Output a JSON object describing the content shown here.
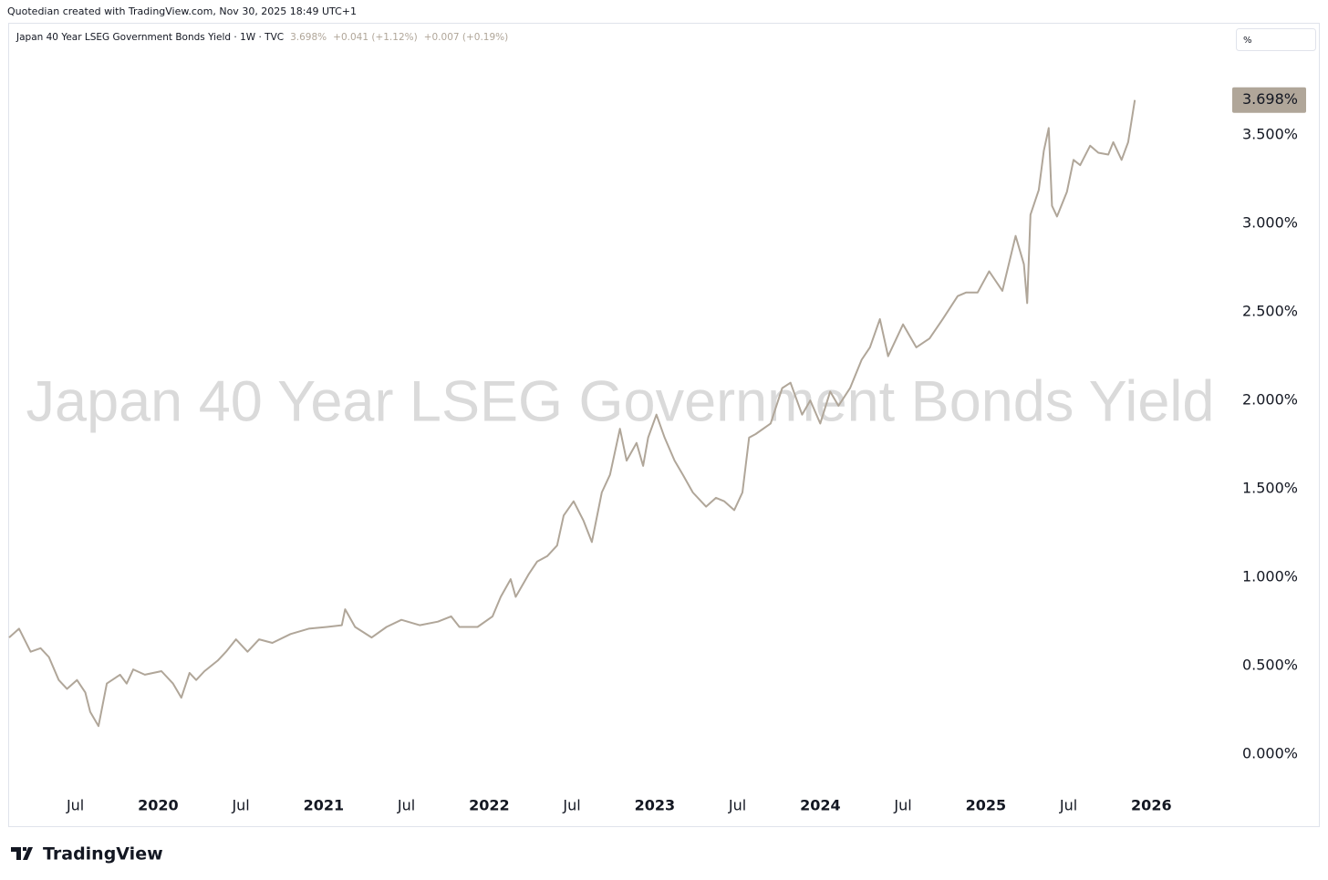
{
  "header": {
    "attribution": "Quotedian created with TradingView.com, Nov 30, 2025 18:49 UTC+1",
    "scale_button": "%"
  },
  "footer": {
    "brand": "TradingView"
  },
  "chart_data": {
    "type": "line",
    "title": "Japan 40 Year LSEG Government Bonds Yield",
    "legend_label": "Japan 40 Year LSEG Government Bonds Yield · 1W · TVC",
    "legend_stats": [
      "3.698%",
      "+0.041 (+1.12%)",
      "+0.007 (+0.19%)"
    ],
    "last_label": "3.698%",
    "color": "#b0a699",
    "x": [
      2019.1,
      2019.16,
      2019.23,
      2019.29,
      2019.34,
      2019.4,
      2019.45,
      2019.51,
      2019.56,
      2019.59,
      2019.64,
      2019.69,
      2019.77,
      2019.81,
      2019.85,
      2019.92,
      2020.02,
      2020.09,
      2020.14,
      2020.19,
      2020.23,
      2020.28,
      2020.36,
      2020.41,
      2020.47,
      2020.54,
      2020.61,
      2020.69,
      2020.8,
      2020.91,
      2021.02,
      2021.11,
      2021.13,
      2021.19,
      2021.29,
      2021.38,
      2021.47,
      2021.58,
      2021.69,
      2021.77,
      2021.82,
      2021.93,
      2022.02,
      2022.07,
      2022.13,
      2022.16,
      2022.24,
      2022.29,
      2022.35,
      2022.41,
      2022.45,
      2022.51,
      2022.57,
      2022.62,
      2022.68,
      2022.73,
      2022.79,
      2022.83,
      2022.89,
      2022.93,
      2022.96,
      2023.01,
      2023.06,
      2023.12,
      2023.17,
      2023.23,
      2023.31,
      2023.37,
      2023.42,
      2023.48,
      2023.53,
      2023.57,
      2023.61,
      2023.7,
      2023.77,
      2023.82,
      2023.89,
      2023.94,
      2024.0,
      2024.06,
      2024.11,
      2024.18,
      2024.25,
      2024.3,
      2024.36,
      2024.41,
      2024.5,
      2024.58,
      2024.66,
      2024.74,
      2024.83,
      2024.88,
      2024.95,
      2025.02,
      2025.1,
      2025.18,
      2025.23,
      2025.25,
      2025.27,
      2025.32,
      2025.35,
      2025.38,
      2025.4,
      2025.43,
      2025.49,
      2025.53,
      2025.57,
      2025.63,
      2025.68,
      2025.74,
      2025.77,
      2025.82,
      2025.86,
      2025.9
    ],
    "values": [
      0.66,
      0.71,
      0.58,
      0.6,
      0.55,
      0.42,
      0.37,
      0.42,
      0.35,
      0.24,
      0.16,
      0.4,
      0.45,
      0.4,
      0.48,
      0.45,
      0.47,
      0.4,
      0.32,
      0.46,
      0.42,
      0.47,
      0.53,
      0.58,
      0.65,
      0.58,
      0.65,
      0.63,
      0.68,
      0.71,
      0.72,
      0.73,
      0.82,
      0.72,
      0.66,
      0.72,
      0.76,
      0.73,
      0.75,
      0.78,
      0.72,
      0.72,
      0.78,
      0.89,
      0.99,
      0.89,
      1.02,
      1.09,
      1.12,
      1.18,
      1.35,
      1.43,
      1.32,
      1.2,
      1.48,
      1.58,
      1.84,
      1.66,
      1.76,
      1.63,
      1.79,
      1.92,
      1.79,
      1.66,
      1.58,
      1.48,
      1.4,
      1.45,
      1.43,
      1.38,
      1.48,
      1.79,
      1.81,
      1.87,
      2.07,
      2.1,
      1.92,
      2.0,
      1.87,
      2.05,
      1.97,
      2.07,
      2.23,
      2.3,
      2.46,
      2.25,
      2.43,
      2.3,
      2.35,
      2.46,
      2.59,
      2.61,
      2.61,
      2.73,
      2.62,
      2.93,
      2.77,
      2.55,
      3.05,
      3.19,
      3.41,
      3.54,
      3.1,
      3.04,
      3.18,
      3.36,
      3.33,
      3.44,
      3.4,
      3.39,
      3.46,
      3.36,
      3.46,
      3.698
    ],
    "xlim": [
      2019.1,
      2026.45
    ],
    "xticks": [
      {
        "value": 2019.5,
        "label": "Jul"
      },
      2020,
      {
        "value": 2020.5,
        "label": "Jul"
      },
      2021,
      {
        "value": 2021.5,
        "label": "Jul"
      },
      2022,
      {
        "value": 2022.5,
        "label": "Jul"
      },
      2023,
      {
        "value": 2023.5,
        "label": "Jul"
      },
      2024,
      {
        "value": 2024.5,
        "label": "Jul"
      },
      2025,
      {
        "value": 2025.5,
        "label": "Jul"
      },
      2026
    ],
    "ylim": [
      -0.2,
      4.15
    ],
    "yticks": [
      {
        "value": 0,
        "label": "0.000%"
      },
      {
        "value": 0.5,
        "label": "0.500%"
      },
      {
        "value": 1,
        "label": "1.000%"
      },
      {
        "value": 1.5,
        "label": "1.500%"
      },
      {
        "value": 2,
        "label": "2.000%"
      },
      {
        "value": 2.5,
        "label": "2.500%"
      },
      {
        "value": 3,
        "label": "3.000%"
      },
      {
        "value": 3.5,
        "label": "3.500%"
      }
    ],
    "grid": false
  }
}
